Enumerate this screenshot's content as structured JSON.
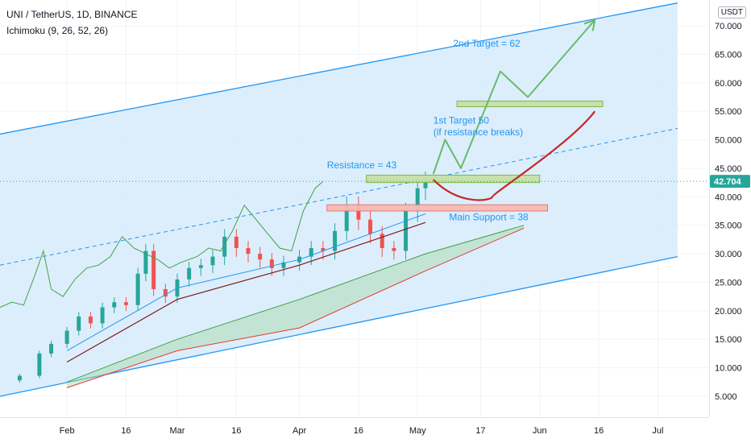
{
  "header": {
    "symbol": "UNI / TetherUS, 1D, BINANCE",
    "indicator": "Ichimoku (9, 26, 52, 26)"
  },
  "price_axis": {
    "currency": "USDT",
    "ticks": [
      "70.000",
      "65.000",
      "60.000",
      "55.000",
      "50.000",
      "45.000",
      "40.000",
      "35.000",
      "30.000",
      "25.000",
      "20.000",
      "15.000",
      "10.000",
      "5.000"
    ],
    "current_price": "42.704"
  },
  "time_axis": {
    "ticks": [
      "Feb",
      "16",
      "Mar",
      "16",
      "Apr",
      "16",
      "May",
      "17",
      "Jun",
      "16",
      "Jul"
    ]
  },
  "annotations": {
    "second_target": "2nd Target = 62",
    "first_target_line1": "1st Target 50",
    "first_target_line2": "(if resistance breaks)",
    "resistance": "Resistance = 43",
    "support": "Main Support = 38"
  },
  "colors": {
    "channel_fill": "#d6ebfb",
    "channel_line": "#2196f3",
    "up_candle": "#26a69a",
    "down_candle": "#ef5350",
    "conversion_line": "#2196f3",
    "base_line": "#801922",
    "lagging_span": "#43a047",
    "lead_a": "#43a047",
    "lead_b": "#e53935",
    "projection_green": "#66bb6a",
    "projection_red": "#c62828",
    "annotation_text": "#2196f3",
    "price_badge": "#26a69a"
  },
  "chart_data": {
    "type": "candlestick",
    "title": "UNI / TetherUS, 1D, BINANCE",
    "ylim": [
      0,
      74
    ],
    "x_range": [
      "2021-01-15",
      "2021-07-14"
    ],
    "resistance": 43,
    "main_support": 38,
    "first_target": 50,
    "second_target": 62,
    "current_price": 42.704,
    "close_series": [
      {
        "date": "2021-01-15",
        "close": 7.8
      },
      {
        "date": "2021-01-20",
        "close": 8.6
      },
      {
        "date": "2021-01-25",
        "close": 12.5
      },
      {
        "date": "2021-01-28",
        "close": 14.2
      },
      {
        "date": "2021-02-01",
        "close": 16.5
      },
      {
        "date": "2021-02-04",
        "close": 19.0
      },
      {
        "date": "2021-02-07",
        "close": 17.8
      },
      {
        "date": "2021-02-10",
        "close": 20.6
      },
      {
        "date": "2021-02-13",
        "close": 21.5
      },
      {
        "date": "2021-02-16",
        "close": 21.0
      },
      {
        "date": "2021-02-19",
        "close": 26.5
      },
      {
        "date": "2021-02-21",
        "close": 30.5
      },
      {
        "date": "2021-02-23",
        "close": 23.8
      },
      {
        "date": "2021-02-26",
        "close": 22.5
      },
      {
        "date": "2021-03-01",
        "close": 25.5
      },
      {
        "date": "2021-03-04",
        "close": 27.5
      },
      {
        "date": "2021-03-07",
        "close": 28.0
      },
      {
        "date": "2021-03-10",
        "close": 29.5
      },
      {
        "date": "2021-03-13",
        "close": 33.0
      },
      {
        "date": "2021-03-16",
        "close": 31.0
      },
      {
        "date": "2021-03-19",
        "close": 30.0
      },
      {
        "date": "2021-03-22",
        "close": 29.0
      },
      {
        "date": "2021-03-25",
        "close": 27.5
      },
      {
        "date": "2021-03-28",
        "close": 28.5
      },
      {
        "date": "2021-04-01",
        "close": 29.5
      },
      {
        "date": "2021-04-04",
        "close": 31.0
      },
      {
        "date": "2021-04-07",
        "close": 30.5
      },
      {
        "date": "2021-04-10",
        "close": 34.0
      },
      {
        "date": "2021-04-13",
        "close": 38.5
      },
      {
        "date": "2021-04-16",
        "close": 36.0
      },
      {
        "date": "2021-04-19",
        "close": 33.5
      },
      {
        "date": "2021-04-22",
        "close": 31.0
      },
      {
        "date": "2021-04-25",
        "close": 30.5
      },
      {
        "date": "2021-04-28",
        "close": 37.5
      },
      {
        "date": "2021-05-01",
        "close": 41.5
      },
      {
        "date": "2021-05-03",
        "close": 42.7
      }
    ],
    "ichimoku": {
      "conversion_line": [
        {
          "date": "2021-02-01",
          "value": 13
        },
        {
          "date": "2021-03-01",
          "value": 24
        },
        {
          "date": "2021-04-01",
          "value": 29
        },
        {
          "date": "2021-05-03",
          "value": 37
        }
      ],
      "base_line": [
        {
          "date": "2021-02-01",
          "value": 11
        },
        {
          "date": "2021-03-01",
          "value": 22
        },
        {
          "date": "2021-04-01",
          "value": 28
        },
        {
          "date": "2021-05-03",
          "value": 35.5
        }
      ],
      "lead_span_a": [
        {
          "date": "2021-02-01",
          "value": 7.5
        },
        {
          "date": "2021-03-01",
          "value": 15
        },
        {
          "date": "2021-04-01",
          "value": 22
        },
        {
          "date": "2021-05-03",
          "value": 30
        },
        {
          "date": "2021-05-28",
          "value": 35
        }
      ],
      "lead_span_b": [
        {
          "date": "2021-02-01",
          "value": 6.5
        },
        {
          "date": "2021-03-01",
          "value": 13
        },
        {
          "date": "2021-04-01",
          "value": 17
        },
        {
          "date": "2021-05-03",
          "value": 27
        },
        {
          "date": "2021-05-28",
          "value": 34.5
        }
      ]
    },
    "projection_green": [
      {
        "date": "2021-05-05",
        "value": 44
      },
      {
        "date": "2021-05-08",
        "value": 50
      },
      {
        "date": "2021-05-12",
        "value": 45
      },
      {
        "date": "2021-05-22",
        "value": 62
      },
      {
        "date": "2021-05-29",
        "value": 57.5
      },
      {
        "date": "2021-06-15",
        "value": 71
      }
    ],
    "projection_red": [
      {
        "date": "2021-05-05",
        "value": 43
      },
      {
        "date": "2021-05-12",
        "value": 39
      },
      {
        "date": "2021-05-20",
        "value": 40
      },
      {
        "date": "2021-06-15",
        "value": 55
      }
    ],
    "channel": {
      "upper": [
        {
          "date": "2021-01-15",
          "value": 51
        },
        {
          "date": "2021-07-06",
          "value": 74
        }
      ],
      "lower": [
        {
          "date": "2021-01-15",
          "value": 5
        },
        {
          "date": "2021-07-06",
          "value": 29.5
        }
      ],
      "mid_dashed": [
        {
          "date": "2021-01-15",
          "value": 28
        },
        {
          "date": "2021-07-06",
          "value": 52
        }
      ]
    },
    "zones": [
      {
        "name": "resistance",
        "y": [
          42.5,
          43.8
        ],
        "x": [
          "2021-04-18",
          "2021-06-01"
        ]
      },
      {
        "name": "main_support",
        "y": [
          37.5,
          38.6
        ],
        "x": [
          "2021-04-08",
          "2021-06-03"
        ]
      },
      {
        "name": "target_zone",
        "y": [
          55.8,
          56.8
        ],
        "x": [
          "2021-05-11",
          "2021-06-17"
        ]
      }
    ],
    "grid": true
  }
}
